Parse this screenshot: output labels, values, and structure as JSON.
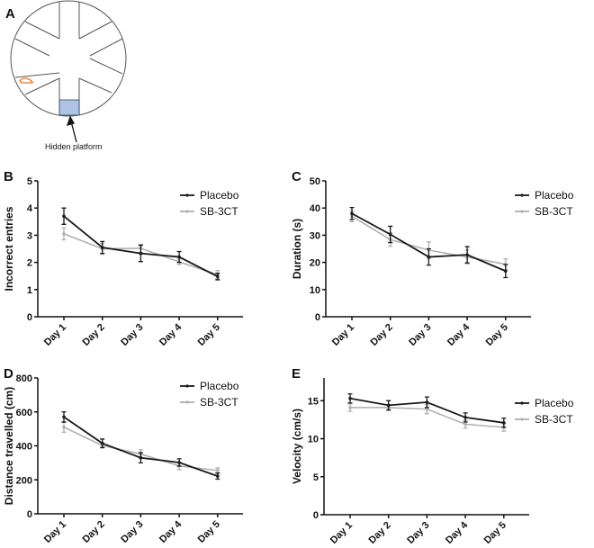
{
  "panel_a": {
    "letter": "A",
    "annotation": "Hidden platform",
    "platform_color": "#aec3e6",
    "animal_color": "#f07020"
  },
  "colors": {
    "Placebo": "#1a1a1a",
    "SB-3CT": "#b0b0b0"
  },
  "chart_data": [
    {
      "letter": "B",
      "type": "line",
      "categories": [
        "Day 1",
        "Day 2",
        "Day 3",
        "Day 4",
        "Day 5"
      ],
      "ylabel": "Incorrect entries",
      "ylim": [
        0,
        5
      ],
      "yticks": [
        0,
        1,
        2,
        3,
        4,
        5
      ],
      "legend": "top-right",
      "series": [
        {
          "name": "Placebo",
          "values": [
            3.7,
            2.55,
            2.33,
            2.2,
            1.48
          ],
          "errors": [
            0.3,
            0.22,
            0.3,
            0.2,
            0.12
          ]
        },
        {
          "name": "SB-3CT",
          "values": [
            3.05,
            2.5,
            2.52,
            2.02,
            1.55
          ],
          "errors": [
            0.22,
            0.2,
            0.15,
            0.1,
            0.15
          ]
        }
      ]
    },
    {
      "letter": "C",
      "type": "line",
      "categories": [
        "Day 1",
        "Day 2",
        "Day 3",
        "Day 4",
        "Day 5"
      ],
      "ylabel": "Duration (s)",
      "ylim": [
        0,
        50
      ],
      "yticks": [
        0,
        10,
        20,
        30,
        40,
        50
      ],
      "legend": "top-right",
      "series": [
        {
          "name": "Placebo",
          "values": [
            38,
            30.3,
            22,
            22.8,
            16.8
          ],
          "errors": [
            2.2,
            3,
            3,
            3,
            2.4
          ]
        },
        {
          "name": "SB-3CT",
          "values": [
            37,
            28.4,
            24.5,
            22,
            19.3
          ],
          "errors": [
            2,
            2.5,
            3,
            2.5,
            2
          ]
        }
      ]
    },
    {
      "letter": "D",
      "type": "line",
      "categories": [
        "Day 1",
        "Day 2",
        "Day 3",
        "Day 4",
        "Day 5"
      ],
      "ylabel": "Distance travelled (cm)",
      "ylim": [
        0,
        800
      ],
      "yticks": [
        0,
        200,
        400,
        600,
        800
      ],
      "legend": "top-right",
      "series": [
        {
          "name": "Placebo",
          "values": [
            570,
            415,
            330,
            302,
            222
          ],
          "errors": [
            30,
            25,
            30,
            22,
            18
          ]
        },
        {
          "name": "SB-3CT",
          "values": [
            510,
            402,
            352,
            282,
            255
          ],
          "errors": [
            30,
            15,
            25,
            22,
            15
          ]
        }
      ]
    },
    {
      "letter": "E",
      "type": "line",
      "categories": [
        "Day 1",
        "Day 2",
        "Day 3",
        "Day 4",
        "Day 5"
      ],
      "ylabel": "Velocity (cm/s)",
      "ylim": [
        0,
        18
      ],
      "yticks": [
        0,
        5,
        10,
        15
      ],
      "legend": "top-right",
      "series": [
        {
          "name": "Placebo",
          "values": [
            15.3,
            14.4,
            14.8,
            12.8,
            12.1
          ],
          "errors": [
            0.6,
            0.6,
            0.7,
            0.6,
            0.6
          ]
        },
        {
          "name": "SB-3CT",
          "values": [
            14.1,
            14.1,
            13.9,
            11.9,
            11.5
          ],
          "errors": [
            0.5,
            0.4,
            0.6,
            0.5,
            0.5
          ]
        }
      ]
    }
  ]
}
